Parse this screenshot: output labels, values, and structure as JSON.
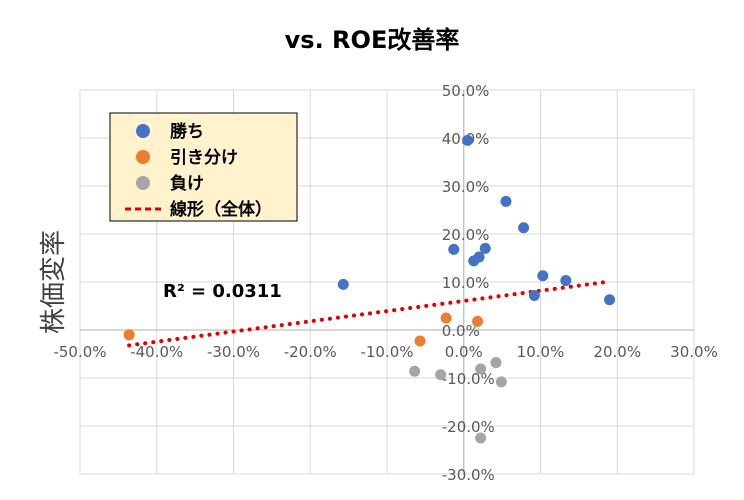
{
  "chart_data": {
    "type": "scatter",
    "title": "vs. ROE改善率",
    "xlabel": "",
    "ylabel": "株価変率",
    "xlim": [
      -0.5,
      0.3
    ],
    "ylim": [
      -0.3,
      0.5
    ],
    "x_ticks": [
      {
        "value": -0.5,
        "label": "-50.0%"
      },
      {
        "value": -0.4,
        "label": "-40.0%"
      },
      {
        "value": -0.3,
        "label": "-30.0%"
      },
      {
        "value": -0.2,
        "label": "-20.0%"
      },
      {
        "value": -0.1,
        "label": "-10.0%"
      },
      {
        "value": 0.0,
        "label": "0.0%"
      },
      {
        "value": 0.1,
        "label": "10.0%"
      },
      {
        "value": 0.2,
        "label": "20.0%"
      },
      {
        "value": 0.3,
        "label": "30.0%"
      }
    ],
    "y_ticks": [
      {
        "value": 0.5,
        "label": "50.0%"
      },
      {
        "value": 0.4,
        "label": "40.0%"
      },
      {
        "value": 0.3,
        "label": "30.0%"
      },
      {
        "value": 0.2,
        "label": "20.0%"
      },
      {
        "value": 0.1,
        "label": "10.0%"
      },
      {
        "value": 0.0,
        "label": "0.0%"
      },
      {
        "value": -0.1,
        "label": "-10.0%"
      },
      {
        "value": -0.2,
        "label": "-20.0%"
      },
      {
        "value": -0.3,
        "label": "-30.0%"
      }
    ],
    "grid": true,
    "legend_position": "top-left",
    "series": [
      {
        "name": "勝ち",
        "color": "#4472C4",
        "points": [
          {
            "x": 0.005,
            "y": 0.395
          },
          {
            "x": 0.055,
            "y": 0.268
          },
          {
            "x": 0.078,
            "y": 0.213
          },
          {
            "x": 0.028,
            "y": 0.17
          },
          {
            "x": -0.013,
            "y": 0.168
          },
          {
            "x": 0.02,
            "y": 0.152
          },
          {
            "x": 0.013,
            "y": 0.144
          },
          {
            "x": 0.103,
            "y": 0.113
          },
          {
            "x": 0.133,
            "y": 0.103
          },
          {
            "x": -0.157,
            "y": 0.095
          },
          {
            "x": 0.092,
            "y": 0.072
          },
          {
            "x": 0.19,
            "y": 0.063
          }
        ]
      },
      {
        "name": "引き分け",
        "color": "#ED7D31",
        "points": [
          {
            "x": -0.436,
            "y": -0.01
          },
          {
            "x": -0.057,
            "y": -0.023
          },
          {
            "x": -0.023,
            "y": 0.025
          },
          {
            "x": 0.018,
            "y": 0.018
          }
        ]
      },
      {
        "name": "負け",
        "color": "#A5A5A5",
        "points": [
          {
            "x": -0.064,
            "y": -0.086
          },
          {
            "x": -0.03,
            "y": -0.093
          },
          {
            "x": 0.022,
            "y": -0.081
          },
          {
            "x": 0.042,
            "y": -0.068
          },
          {
            "x": 0.049,
            "y": -0.108
          },
          {
            "x": 0.022,
            "y": -0.225
          }
        ]
      }
    ],
    "trendline": {
      "name": "線形（全体）",
      "color": "#E00000",
      "x_range": [
        -0.436,
        0.19
      ],
      "y_at_start": -0.032,
      "y_at_end": 0.101
    },
    "annotation": "R² = 0.0311"
  }
}
